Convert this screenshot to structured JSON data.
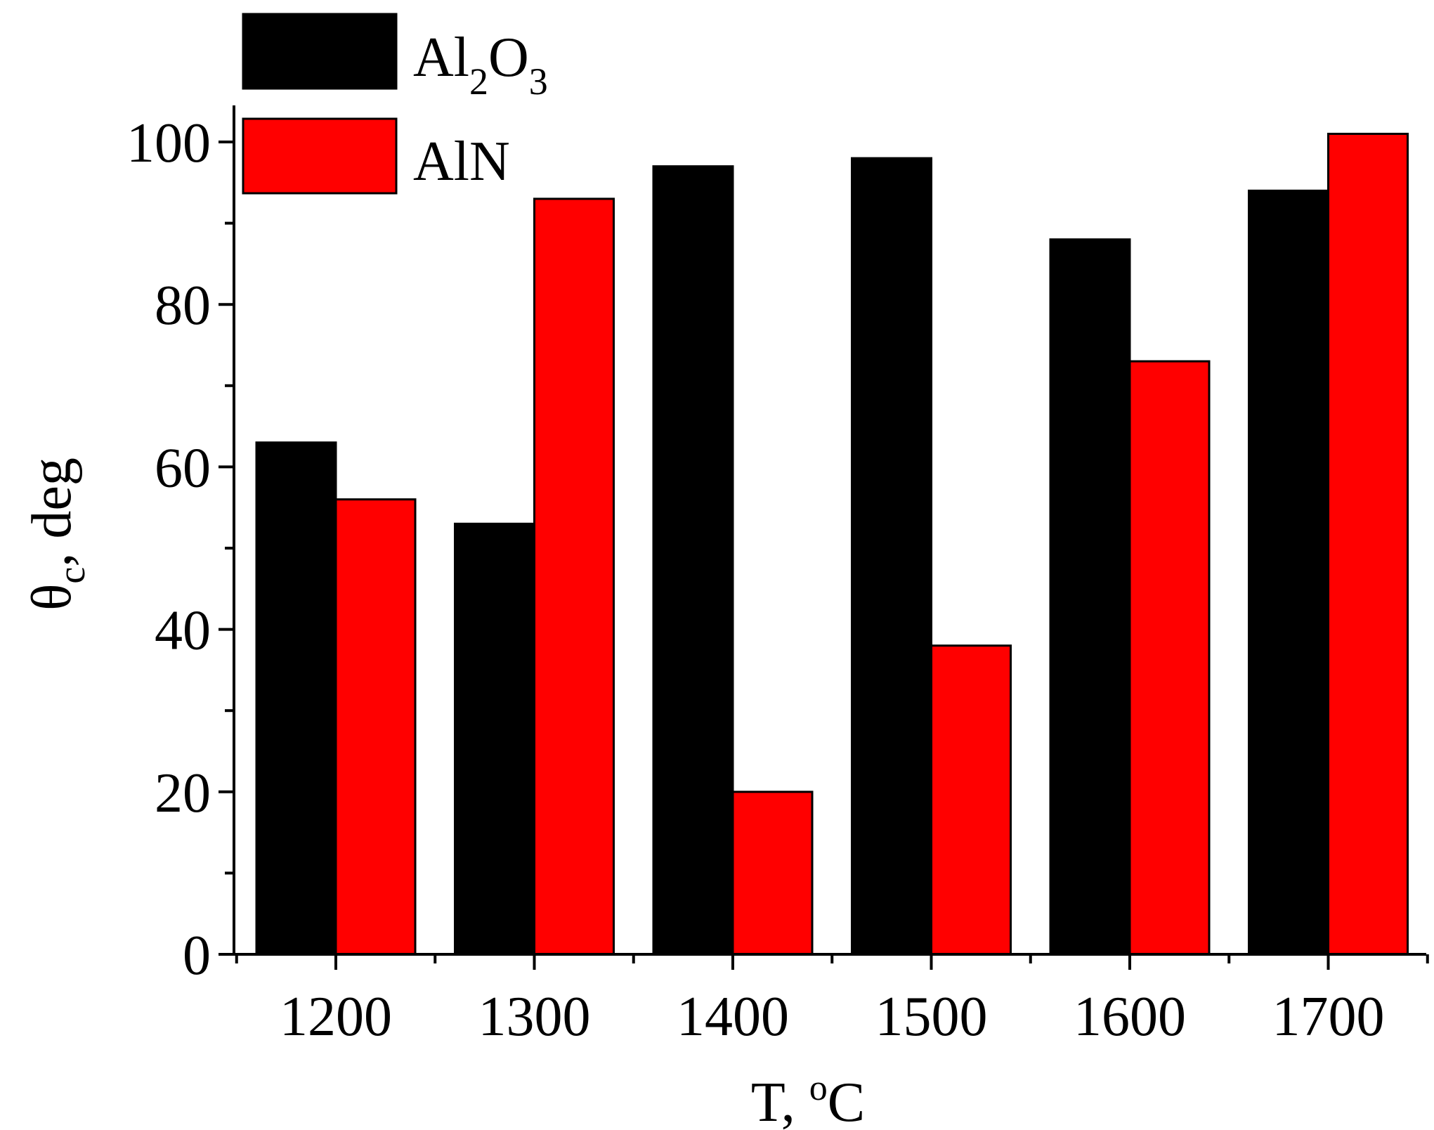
{
  "chart_data": {
    "type": "bar",
    "categories": [
      "1200",
      "1300",
      "1400",
      "1500",
      "1600",
      "1700"
    ],
    "series": [
      {
        "name": "Al2O3",
        "legend_base": "Al",
        "legend_sub1": "2",
        "legend_mid": "O",
        "legend_sub2": "3",
        "color": "#000000",
        "values": [
          63,
          53,
          97,
          98,
          88,
          94
        ]
      },
      {
        "name": "AlN",
        "color": "#ff0000",
        "values": [
          56,
          93,
          20,
          38,
          73,
          101
        ]
      }
    ],
    "xlabel": "T, ",
    "xlabel_sup": "o",
    "xlabel_unit": "C",
    "ylabel_main": "θ",
    "ylabel_sub": "c",
    "ylabel_rest": ", deg",
    "ylim": [
      0,
      105
    ],
    "yticks": [
      "0",
      "20",
      "40",
      "60",
      "80",
      "100"
    ],
    "grid": false,
    "legend_position": "top-left"
  }
}
